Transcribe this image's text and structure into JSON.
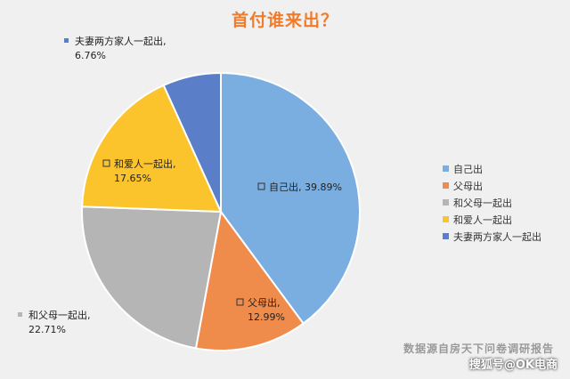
{
  "title": "首付谁来出？",
  "title_color": "#f07c2b",
  "chart_data": {
    "type": "pie",
    "title": "首付谁来出？",
    "categories": [
      "自己出",
      "父母出",
      "和父母一起出",
      "和爱人一起出",
      "夫妻两方家人一起出"
    ],
    "values": [
      39.89,
      12.99,
      22.71,
      17.65,
      6.76
    ],
    "data_labels": [
      {
        "name": "自己出,",
        "value": "39.89%"
      },
      {
        "name": "父母出,",
        "value": "12.99%"
      },
      {
        "name": "和父母一起出,",
        "value": "22.71%"
      },
      {
        "name": "和爱人一起出,",
        "value": "17.65%"
      },
      {
        "name": "夫妻两方家人一起出,",
        "value": "6.76%"
      }
    ],
    "colors": [
      "#7aaee0",
      "#ef8c4c",
      "#b5b5b5",
      "#fcc42c",
      "#5a7fc8"
    ],
    "legend_position": "right"
  },
  "legend": {
    "items": [
      "自己出",
      "父母出",
      "和父母一起出",
      "和爱人一起出",
      "夫妻两方家人一起出"
    ]
  },
  "source_note": "数据源自房天下问卷调研报告",
  "watermark": "搜狐号@OK电商"
}
